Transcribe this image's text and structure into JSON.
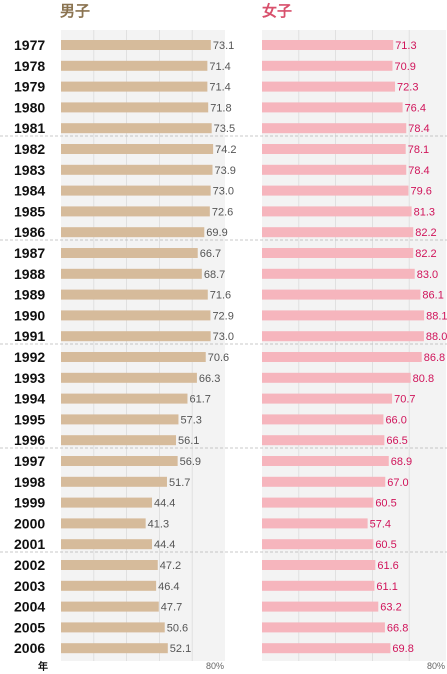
{
  "headings": {
    "male": "男子",
    "female": "女子"
  },
  "unit_label": "年",
  "axis_end_label": "80%",
  "colors": {
    "male_bar": "#d6bb9b",
    "female_bar": "#f6b5bd",
    "male_text": "#555555",
    "female_text": "#d0145a",
    "panel_bg": "#f3f3f3"
  },
  "chart_data": [
    {
      "type": "bar",
      "orientation": "horizontal",
      "title": "男子",
      "categories": [
        "1977",
        "1978",
        "1979",
        "1980",
        "1981",
        "1982",
        "1983",
        "1984",
        "1985",
        "1986",
        "1987",
        "1988",
        "1989",
        "1990",
        "1991",
        "1992",
        "1993",
        "1994",
        "1995",
        "1996",
        "1997",
        "1998",
        "1999",
        "2000",
        "2001",
        "2002",
        "2003",
        "2004",
        "2005",
        "2006"
      ],
      "values": [
        73.1,
        71.4,
        71.4,
        71.8,
        73.5,
        74.2,
        73.9,
        73.0,
        72.6,
        69.9,
        66.7,
        68.7,
        71.6,
        72.9,
        73.0,
        70.6,
        66.3,
        61.7,
        57.3,
        56.1,
        56.9,
        51.7,
        44.4,
        41.3,
        44.4,
        47.2,
        46.4,
        47.7,
        50.6,
        52.1
      ],
      "value_labels": [
        "73.1",
        "71.4",
        "71.4",
        "71.8",
        "73.5",
        "74.2",
        "73.9",
        "73.0",
        "72.6",
        "69.9",
        "66.7",
        "68.7",
        "71.6",
        "72.9",
        "73.0",
        "70.6",
        "66.3",
        "61.7",
        "57.3",
        "56.1",
        "56.9",
        "51.7",
        "44.4",
        "41.3",
        "44.4",
        "47.2",
        "46.4",
        "47.7",
        "50.6",
        "52.1"
      ],
      "xlim": [
        0,
        80
      ]
    },
    {
      "type": "bar",
      "orientation": "horizontal",
      "title": "女子",
      "categories": [
        "1977",
        "1978",
        "1979",
        "1980",
        "1981",
        "1982",
        "1983",
        "1984",
        "1985",
        "1986",
        "1987",
        "1988",
        "1989",
        "1990",
        "1991",
        "1992",
        "1993",
        "1994",
        "1995",
        "1996",
        "1997",
        "1998",
        "1999",
        "2000",
        "2001",
        "2002",
        "2003",
        "2004",
        "2005",
        "2006"
      ],
      "values": [
        71.3,
        70.9,
        72.3,
        76.4,
        78.4,
        78.1,
        78.4,
        79.6,
        81.3,
        82.2,
        82.2,
        83.0,
        86.1,
        88.1,
        88.0,
        86.8,
        80.8,
        70.7,
        66.0,
        66.5,
        68.9,
        67.0,
        60.5,
        57.4,
        60.5,
        61.6,
        61.1,
        63.2,
        66.8,
        69.8
      ],
      "value_labels": [
        "71.3",
        "70.9",
        "72.3",
        "76.4",
        "78.4",
        "78.1",
        "78.4",
        "79.6",
        "81.3",
        "82.2",
        "82.2",
        "83.0",
        "86.1",
        "88.1",
        "88.0",
        "86.8",
        "80.8",
        "70.7",
        "66.0",
        "66.5",
        "68.9",
        "67.0",
        "60.5",
        "57.4",
        "60.5",
        "61.6",
        "61.1",
        "63.2",
        "66.8",
        "69.8"
      ],
      "xlim": [
        0,
        100
      ]
    }
  ]
}
